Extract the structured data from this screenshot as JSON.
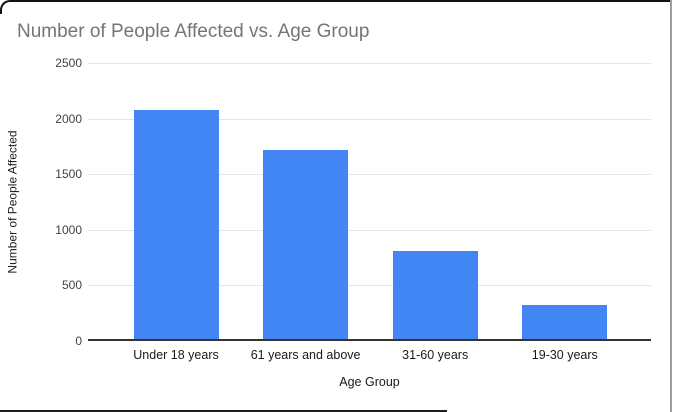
{
  "chart_data": {
    "type": "bar",
    "title": "Number of People Affected vs. Age Group",
    "categories": [
      "Under 18 years",
      "61 years and above",
      "31-60 years",
      "19-30 years"
    ],
    "values": [
      2080,
      1720,
      810,
      320
    ],
    "xlabel": "Age Group",
    "ylabel": "Number of People Affected",
    "ylim": [
      0,
      2500
    ],
    "ytick_step": 500,
    "ytick_labels": [
      "0",
      "500",
      "1000",
      "1500",
      "2000",
      "2500"
    ],
    "grid": true,
    "legend": "none",
    "bar_color": "#4285F4"
  },
  "colors": {
    "title_text": "#757575",
    "axis_tick_text": "#424242",
    "category_text": "#1a1a1a",
    "gridline": "#e6e6e6",
    "axis_line": "#333333",
    "bar": "#4285F4",
    "frame_border_dark": "#111111",
    "frame_border_right": "#9c9c9c"
  }
}
